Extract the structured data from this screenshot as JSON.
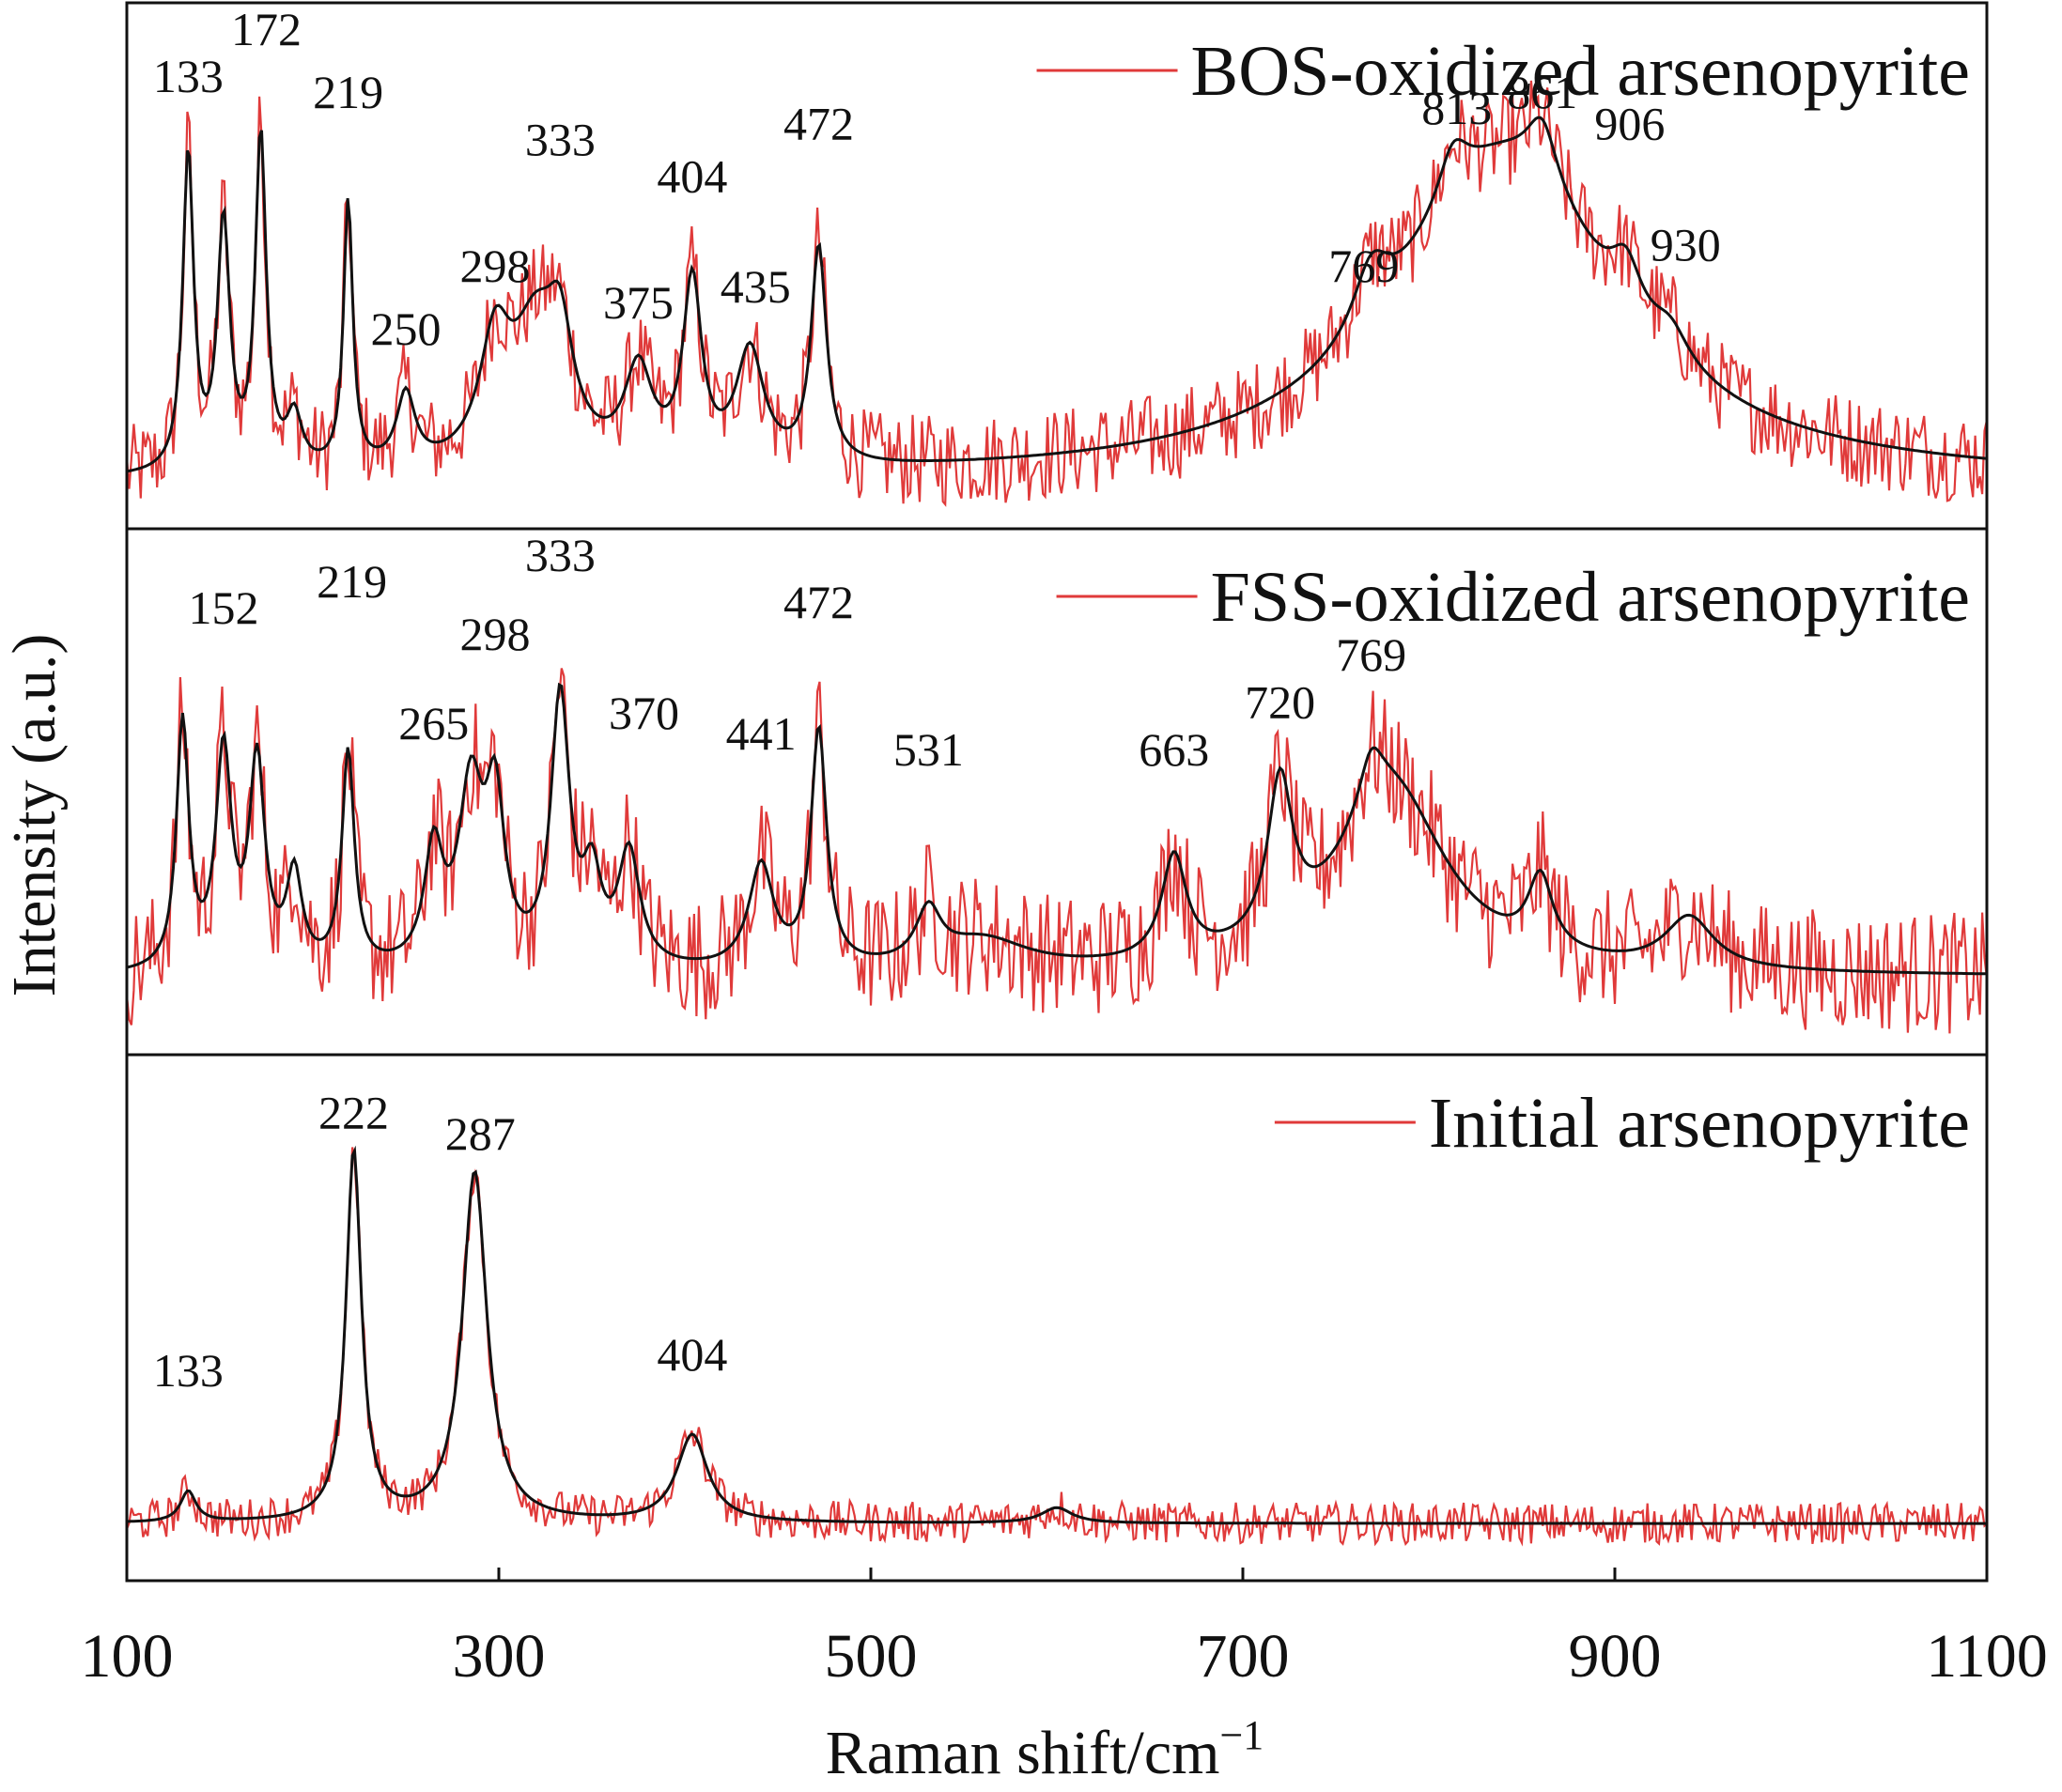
{
  "chart_data": {
    "type": "line",
    "xlabel": "Raman shift/cm",
    "xlabel_superscript": "−1",
    "ylabel": "Intensity (a.u.)",
    "xlim": [
      100,
      1100
    ],
    "x_ticks": [
      "100",
      "300",
      "500",
      "700",
      "900",
      "1100"
    ],
    "y_ticks": [],
    "grid": false,
    "legend_position": "top-right of each panel",
    "colors": {
      "raw": "#e03a3a",
      "smoothed": "#111111",
      "frame": "#111111"
    },
    "panels": [
      {
        "series": [
          {
            "name": "BOS-oxidized arsenopyrite",
            "color": "#e03a3a",
            "baseline": 0.08,
            "peaks": [
              {
                "x": 133,
                "h": 0.62,
                "w": 3.5
              },
              {
                "x": 152,
                "h": 0.48,
                "w": 4
              },
              {
                "x": 172,
                "h": 0.65,
                "w": 3.5
              },
              {
                "x": 190,
                "h": 0.1,
                "w": 5
              },
              {
                "x": 219,
                "h": 0.52,
                "w": 3
              },
              {
                "x": 250,
                "h": 0.14,
                "w": 6
              },
              {
                "x": 298,
                "h": 0.22,
                "w": 10
              },
              {
                "x": 320,
                "h": 0.26,
                "w": 16
              },
              {
                "x": 333,
                "h": 0.18,
                "w": 8
              },
              {
                "x": 375,
                "h": 0.18,
                "w": 9
              },
              {
                "x": 404,
                "h": 0.35,
                "w": 6
              },
              {
                "x": 435,
                "h": 0.22,
                "w": 9
              },
              {
                "x": 472,
                "h": 0.42,
                "w": 5
              },
              {
                "x": 840,
                "h": 0.62,
                "w": 72
              },
              {
                "x": 769,
                "h": 0.12,
                "w": 12
              },
              {
                "x": 813,
                "h": 0.1,
                "w": 10
              },
              {
                "x": 861,
                "h": 0.12,
                "w": 10
              },
              {
                "x": 906,
                "h": 0.1,
                "w": 10
              },
              {
                "x": 930,
                "h": 0.06,
                "w": 12
              }
            ],
            "noise": 0.09
          }
        ],
        "peak_labels": [
          {
            "text": "133",
            "x": 133,
            "y": 0.83
          },
          {
            "text": "172",
            "x": 175,
            "y": 0.92
          },
          {
            "text": "219",
            "x": 219,
            "y": 0.8
          },
          {
            "text": "250",
            "x": 250,
            "y": 0.35
          },
          {
            "text": "298",
            "x": 298,
            "y": 0.47
          },
          {
            "text": "333",
            "x": 333,
            "y": 0.71
          },
          {
            "text": "375",
            "x": 375,
            "y": 0.4
          },
          {
            "text": "404",
            "x": 404,
            "y": 0.64
          },
          {
            "text": "435",
            "x": 438,
            "y": 0.43
          },
          {
            "text": "472",
            "x": 472,
            "y": 0.74
          },
          {
            "text": "769",
            "x": 765,
            "y": 0.47
          },
          {
            "text": "813",
            "x": 815,
            "y": 0.77
          },
          {
            "text": "861",
            "x": 861,
            "y": 0.8
          },
          {
            "text": "906",
            "x": 908,
            "y": 0.74
          },
          {
            "text": "930",
            "x": 938,
            "y": 0.51
          }
        ]
      },
      {
        "series": [
          {
            "name": "FSS-oxidized arsenopyrite",
            "color": "#e03a3a",
            "baseline": 0.14,
            "peaks": [
              {
                "x": 130,
                "h": 0.48,
                "w": 4
              },
              {
                "x": 152,
                "h": 0.42,
                "w": 5
              },
              {
                "x": 170,
                "h": 0.4,
                "w": 5
              },
              {
                "x": 190,
                "h": 0.18,
                "w": 5
              },
              {
                "x": 219,
                "h": 0.42,
                "w": 4
              },
              {
                "x": 265,
                "h": 0.22,
                "w": 6
              },
              {
                "x": 285,
                "h": 0.34,
                "w": 8
              },
              {
                "x": 298,
                "h": 0.3,
                "w": 6
              },
              {
                "x": 333,
                "h": 0.52,
                "w": 6
              },
              {
                "x": 350,
                "h": 0.16,
                "w": 6
              },
              {
                "x": 370,
                "h": 0.22,
                "w": 7
              },
              {
                "x": 441,
                "h": 0.2,
                "w": 8
              },
              {
                "x": 472,
                "h": 0.46,
                "w": 5
              },
              {
                "x": 531,
                "h": 0.1,
                "w": 8
              },
              {
                "x": 663,
                "h": 0.2,
                "w": 8
              },
              {
                "x": 720,
                "h": 0.3,
                "w": 8
              },
              {
                "x": 780,
                "h": 0.36,
                "w": 36
              },
              {
                "x": 769,
                "h": 0.1,
                "w": 8
              },
              {
                "x": 860,
                "h": 0.14,
                "w": 8
              },
              {
                "x": 940,
                "h": 0.1,
                "w": 16
              },
              {
                "x": 560,
                "h": 0.06,
                "w": 30
              }
            ],
            "noise": 0.12
          }
        ],
        "peak_labels": [
          {
            "text": "152",
            "x": 152,
            "y": 0.82
          },
          {
            "text": "219",
            "x": 221,
            "y": 0.87
          },
          {
            "text": "265",
            "x": 265,
            "y": 0.6
          },
          {
            "text": "298",
            "x": 298,
            "y": 0.77
          },
          {
            "text": "333",
            "x": 333,
            "y": 0.92
          },
          {
            "text": "370",
            "x": 378,
            "y": 0.62
          },
          {
            "text": "441",
            "x": 441,
            "y": 0.58
          },
          {
            "text": "472",
            "x": 472,
            "y": 0.83
          },
          {
            "text": "531",
            "x": 531,
            "y": 0.55
          },
          {
            "text": "663",
            "x": 663,
            "y": 0.55
          },
          {
            "text": "720",
            "x": 720,
            "y": 0.64
          },
          {
            "text": "769",
            "x": 769,
            "y": 0.73
          }
        ]
      },
      {
        "series": [
          {
            "name": "Initial arsenopyrite",
            "color": "#e03a3a",
            "baseline": 0.1,
            "peaks": [
              {
                "x": 133,
                "h": 0.06,
                "w": 5
              },
              {
                "x": 222,
                "h": 0.72,
                "w": 5
              },
              {
                "x": 287,
                "h": 0.68,
                "w": 8
              },
              {
                "x": 404,
                "h": 0.17,
                "w": 10
              },
              {
                "x": 600,
                "h": 0.03,
                "w": 10
              }
            ],
            "noise": 0.04
          }
        ],
        "peak_labels": [
          {
            "text": "133",
            "x": 133,
            "y": 0.37
          },
          {
            "text": "222",
            "x": 222,
            "y": 0.86
          },
          {
            "text": "287",
            "x": 290,
            "y": 0.82
          },
          {
            "text": "404",
            "x": 404,
            "y": 0.4
          }
        ]
      }
    ]
  }
}
